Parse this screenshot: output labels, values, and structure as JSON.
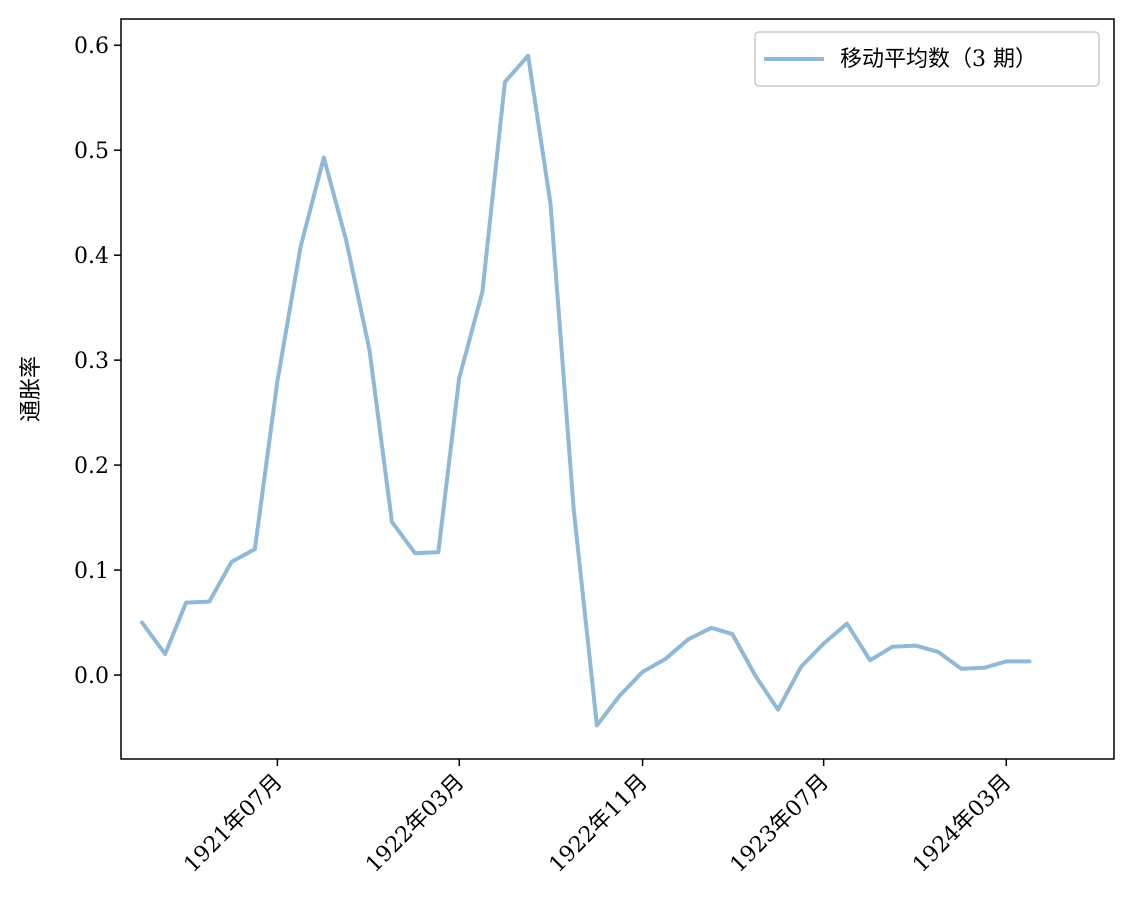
{
  "chart_data": {
    "type": "line",
    "title": "",
    "xlabel": "",
    "ylabel": "通胀率",
    "ylim": [
      -0.08,
      0.625
    ],
    "yticks": [
      0.0,
      0.1,
      0.2,
      0.3,
      0.4,
      0.5,
      0.6
    ],
    "ytick_labels": [
      "0.0",
      "0.1",
      "0.2",
      "0.3",
      "0.4",
      "0.5",
      "0.6"
    ],
    "xlim": [
      "1920-12-04",
      "1924-07-23"
    ],
    "xticks": [
      "1921-07",
      "1922-03",
      "1922-11",
      "1923-07",
      "1924-03"
    ],
    "xtick_labels": [
      "1921年07月",
      "1922年03月",
      "1922年11月",
      "1923年07月",
      "1924年03月"
    ],
    "grid": false,
    "legend": {
      "position": "top-right"
    },
    "series": [
      {
        "name": "移动平均数（3 期）",
        "color": "#8fb9d6",
        "x": [
          "1921-01",
          "1921-02",
          "1921-03",
          "1921-04",
          "1921-05",
          "1921-06",
          "1921-07",
          "1921-08",
          "1921-09",
          "1921-10",
          "1921-11",
          "1921-12",
          "1922-01",
          "1922-02",
          "1922-03",
          "1922-04",
          "1922-05",
          "1922-06",
          "1922-07",
          "1922-08",
          "1922-09",
          "1922-10",
          "1922-11",
          "1922-12",
          "1923-01",
          "1923-02",
          "1923-03",
          "1923-04",
          "1923-05",
          "1923-06",
          "1923-07",
          "1923-08",
          "1923-09",
          "1923-10",
          "1923-11",
          "1923-12",
          "1924-01",
          "1924-02",
          "1924-03",
          "1924-04"
        ],
        "values": [
          0.05,
          0.02,
          0.069,
          0.07,
          0.108,
          0.12,
          0.28,
          0.408,
          0.493,
          0.414,
          0.31,
          0.146,
          0.116,
          0.117,
          0.283,
          0.365,
          0.565,
          0.59,
          0.449,
          0.158,
          -0.048,
          -0.02,
          0.003,
          0.015,
          0.034,
          0.045,
          0.039,
          -0.001,
          -0.033,
          0.008,
          0.03,
          0.049,
          0.014,
          0.027,
          0.028,
          0.022,
          0.006,
          0.007,
          0.013,
          0.013
        ]
      }
    ]
  }
}
